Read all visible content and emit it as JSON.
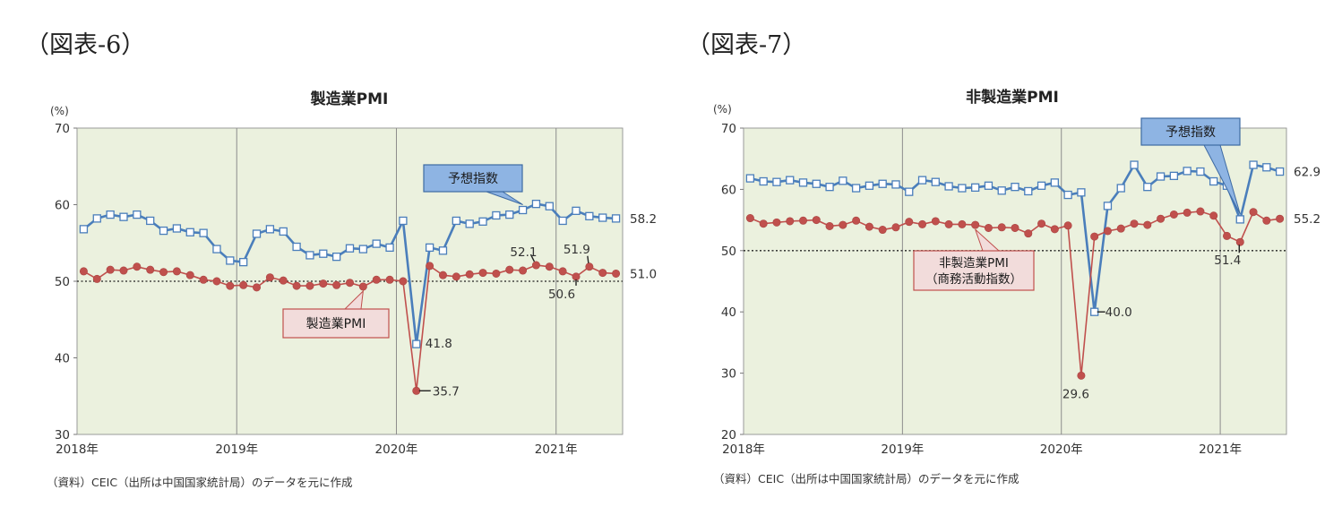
{
  "figures": [
    {
      "label": "（図表-6）",
      "source": "（資料）CEIC（出所は中国国家統計局）のデータを元に作成"
    },
    {
      "label": "（図表-7）",
      "source": "（資料）CEIC（出所は中国国家統計局）のデータを元に作成"
    }
  ],
  "chart_data": [
    {
      "type": "line",
      "title": "製造業PMI",
      "ylabel": "(%)",
      "ylim": [
        30,
        70
      ],
      "yticks": [
        30,
        40,
        50,
        60,
        70
      ],
      "reference_line": 50,
      "x_start": "2018-01",
      "x_end": "2021-05",
      "xticks": [
        "2018年",
        "2019年",
        "2020年",
        "2021年"
      ],
      "grid": true,
      "colors": {
        "plot_bg": "#ebf1de",
        "blue": "#4a7ebb",
        "red": "#c0504d",
        "callout_blue": "#8eb4e3",
        "callout_red": "#f2dcdb"
      },
      "series": [
        {
          "name": "予想指数",
          "values": [
            56.8,
            58.2,
            58.7,
            58.4,
            58.7,
            57.9,
            56.6,
            56.9,
            56.4,
            56.3,
            54.2,
            52.7,
            52.5,
            56.2,
            56.8,
            56.5,
            54.5,
            53.4,
            53.6,
            53.2,
            54.3,
            54.2,
            54.9,
            54.4,
            57.9,
            41.8,
            54.4,
            54.0,
            57.9,
            57.5,
            57.8,
            58.6,
            58.7,
            59.3,
            60.1,
            59.8,
            57.9,
            59.2,
            58.5,
            58.3,
            58.2
          ]
        },
        {
          "name": "製造業PMI",
          "values": [
            51.3,
            50.3,
            51.5,
            51.4,
            51.9,
            51.5,
            51.2,
            51.3,
            50.8,
            50.2,
            50.0,
            49.4,
            49.5,
            49.2,
            50.5,
            50.1,
            49.4,
            49.4,
            49.7,
            49.5,
            49.8,
            49.3,
            50.2,
            50.2,
            50.0,
            35.7,
            52.0,
            50.8,
            50.6,
            50.9,
            51.1,
            51.0,
            51.5,
            51.4,
            52.1,
            51.9,
            51.3,
            50.6,
            51.9,
            51.1,
            51.0
          ]
        }
      ],
      "annotations": [
        "41.8",
        "35.7",
        "52.1",
        "51.9",
        "50.6",
        "58.2",
        "51.0"
      ]
    },
    {
      "type": "line",
      "title": "非製造業PMI",
      "ylabel": "(%)",
      "ylim": [
        20,
        70
      ],
      "yticks": [
        20,
        30,
        40,
        50,
        60,
        70
      ],
      "reference_line": 50,
      "x_start": "2018-01",
      "x_end": "2021-05",
      "xticks": [
        "2018年",
        "2019年",
        "2020年",
        "2021年"
      ],
      "grid": true,
      "colors": {
        "plot_bg": "#ebf1de",
        "blue": "#4a7ebb",
        "red": "#c0504d",
        "callout_blue": "#8eb4e3",
        "callout_red": "#f2dcdb"
      },
      "series": [
        {
          "name": "予想指数",
          "values": [
            61.8,
            61.3,
            61.2,
            61.5,
            61.1,
            60.9,
            60.4,
            61.4,
            60.2,
            60.6,
            60.9,
            60.8,
            59.6,
            61.5,
            61.2,
            60.5,
            60.2,
            60.3,
            60.6,
            59.8,
            60.4,
            59.7,
            60.6,
            61.1,
            59.1,
            59.5,
            40.0,
            57.3,
            60.2,
            64.0,
            60.4,
            62.1,
            62.2,
            63.0,
            62.9,
            61.3,
            60.6,
            55.1,
            64.0,
            63.6,
            62.9
          ]
        },
        {
          "name": "非製造業PMI（商務活動指数）",
          "values": [
            55.3,
            54.4,
            54.6,
            54.8,
            54.9,
            55.0,
            54.0,
            54.2,
            54.9,
            53.9,
            53.4,
            53.8,
            54.7,
            54.3,
            54.8,
            54.3,
            54.3,
            54.2,
            53.7,
            53.8,
            53.7,
            52.8,
            54.4,
            53.5,
            54.1,
            29.6,
            52.3,
            53.2,
            53.6,
            54.4,
            54.2,
            55.2,
            55.9,
            56.2,
            56.4,
            55.7,
            52.4,
            51.4,
            56.3,
            54.9,
            55.2
          ]
        }
      ],
      "annotations": [
        "40.0",
        "29.6",
        "51.4",
        "62.9",
        "55.2"
      ]
    }
  ]
}
